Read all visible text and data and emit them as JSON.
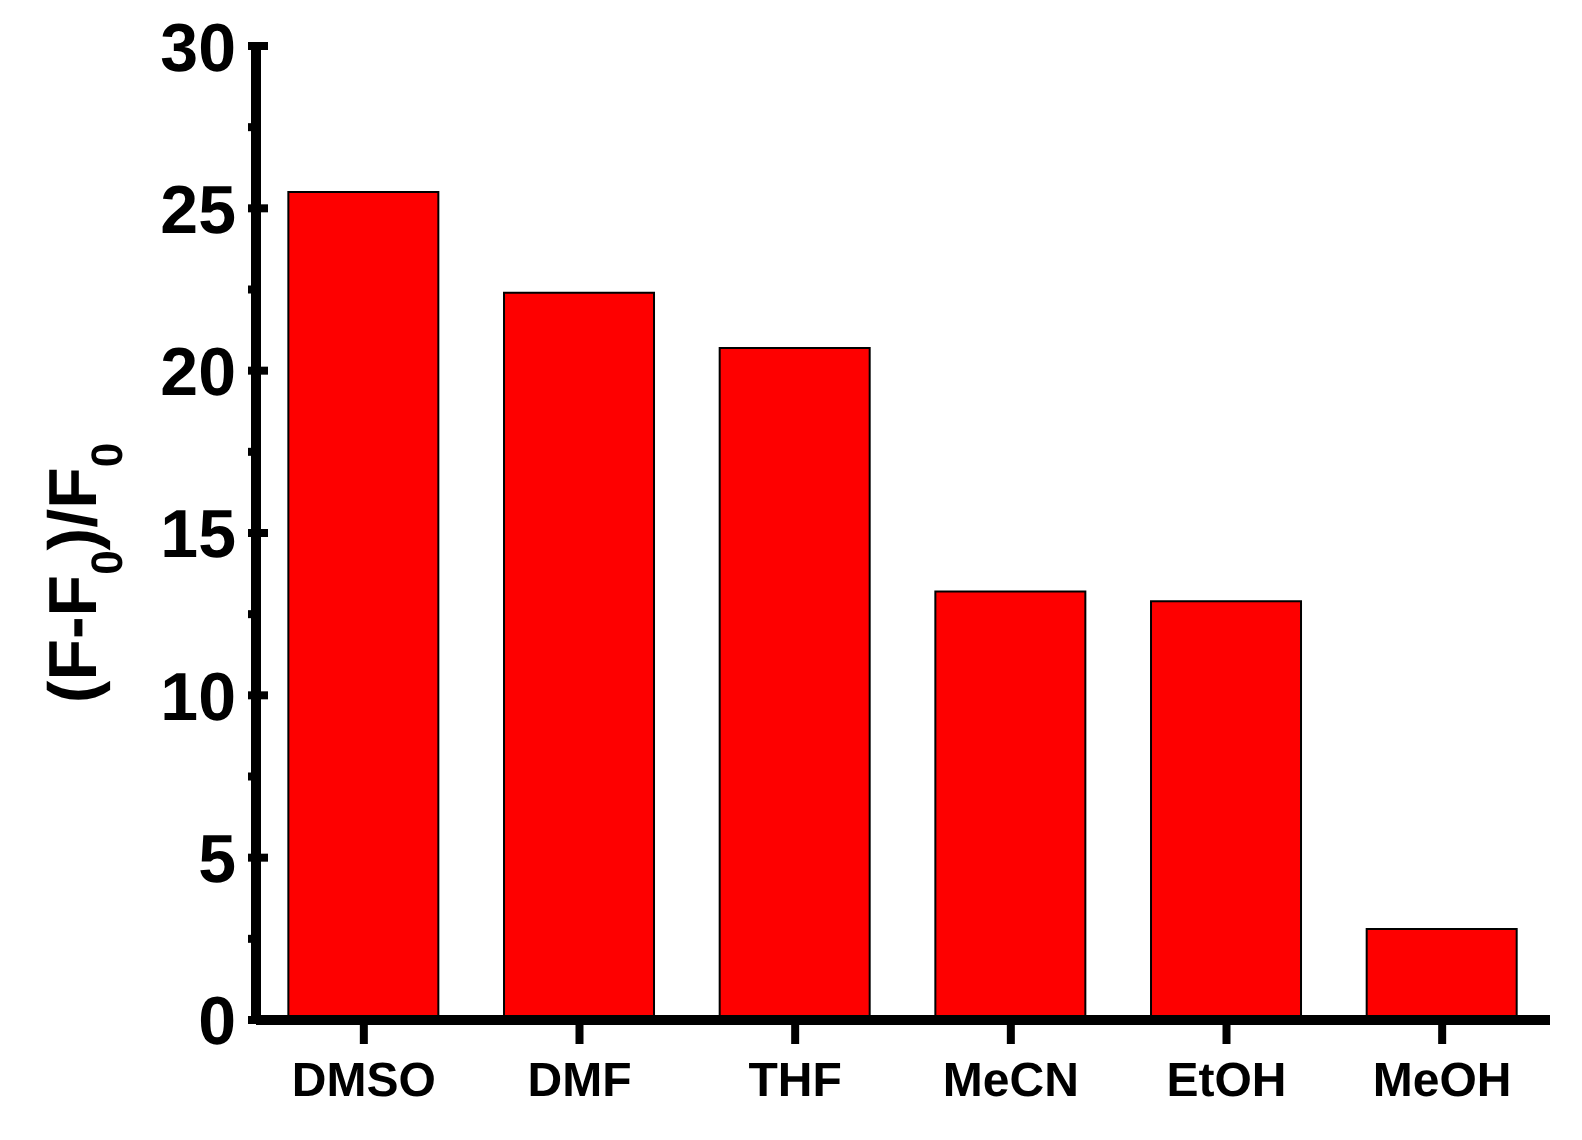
{
  "chart_data": {
    "type": "bar",
    "ylabel": "(F-F$_{0}$)/F$_{0}$",
    "categories": [
      "DMSO",
      "DMF",
      "THF",
      "MeCN",
      "EtOH",
      "MeOH"
    ],
    "values": [
      25.5,
      22.4,
      20.7,
      13.2,
      12.9,
      2.8
    ],
    "color": "#fe0000",
    "ylim": [
      0,
      30
    ],
    "yticks": [
      0,
      {
        "value": 2.5,
        "label": null
      },
      5,
      {
        "value": 7.5,
        "label": null
      },
      10,
      {
        "value": 12.5,
        "label": null
      },
      15,
      {
        "value": 17.5,
        "label": null
      },
      20,
      {
        "value": 22.5,
        "label": null
      },
      25,
      {
        "value": 27.5,
        "label": null
      },
      30
    ],
    "grid": false,
    "legend": false
  }
}
